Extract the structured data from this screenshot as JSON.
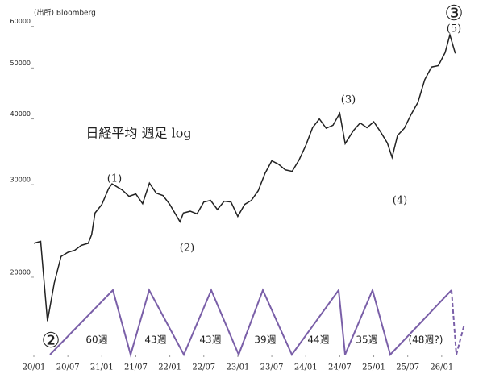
{
  "chart_data": {
    "type": "line",
    "title": "日経平均 週足 log",
    "source": "(出所) Bloomberg",
    "log_scale": true,
    "x": [
      2020.0,
      2020.1,
      2020.2,
      2020.3,
      2020.4,
      2020.5,
      2020.6,
      2020.7,
      2020.8,
      2020.85,
      2020.9,
      2021.0,
      2021.1,
      2021.15,
      2021.3,
      2021.4,
      2021.5,
      2021.6,
      2021.7,
      2021.8,
      2021.9,
      2022.0,
      2022.15,
      2022.2,
      2022.3,
      2022.4,
      2022.5,
      2022.6,
      2022.7,
      2022.8,
      2022.9,
      2023.0,
      2023.1,
      2023.2,
      2023.3,
      2023.4,
      2023.5,
      2023.6,
      2023.7,
      2023.8,
      2023.9,
      2024.0,
      2024.1,
      2024.2,
      2024.3,
      2024.4,
      2024.5,
      2024.58,
      2024.7,
      2024.8,
      2024.9,
      2025.0,
      2025.1,
      2025.2,
      2025.27,
      2025.35,
      2025.45,
      2025.55,
      2025.65,
      2025.75,
      2025.85,
      2025.95,
      2026.05,
      2026.12,
      2026.2
    ],
    "series": [
      {
        "name": "日経平均",
        "color": "#222222",
        "values": [
          23200,
          23400,
          16500,
          19500,
          21900,
          22300,
          22500,
          23000,
          23200,
          24100,
          26500,
          27500,
          29500,
          30100,
          29300,
          28500,
          28800,
          27600,
          30200,
          28900,
          28600,
          27500,
          25500,
          26500,
          26700,
          26400,
          27800,
          28000,
          26900,
          27900,
          27800,
          26100,
          27500,
          28000,
          29200,
          31500,
          33300,
          32800,
          32000,
          31800,
          33400,
          35600,
          38500,
          40000,
          38400,
          38900,
          41000,
          35900,
          38000,
          39300,
          38500,
          39500,
          37800,
          36000,
          33800,
          37200,
          38400,
          40800,
          43000,
          47500,
          50200,
          50500,
          53500,
          57800,
          53300
        ]
      }
    ],
    "xlim": [
      2020.0,
      2026.5
    ],
    "xticks": [
      {
        "value": 2020.0,
        "label": "20/01"
      },
      {
        "value": 2020.5,
        "label": "20/07"
      },
      {
        "value": 2021.0,
        "label": "21/01"
      },
      {
        "value": 2021.5,
        "label": "21/07"
      },
      {
        "value": 2022.0,
        "label": "22/01"
      },
      {
        "value": 2022.5,
        "label": "22/07"
      },
      {
        "value": 2023.0,
        "label": "23/01"
      },
      {
        "value": 2023.5,
        "label": "23/07"
      },
      {
        "value": 2024.0,
        "label": "24/01"
      },
      {
        "value": 2024.5,
        "label": "24/07"
      },
      {
        "value": 2025.0,
        "label": "25/01"
      },
      {
        "value": 2025.5,
        "label": "25/07"
      },
      {
        "value": 2026.0,
        "label": "26/01"
      }
    ],
    "ylim": [
      14250,
      65000
    ],
    "yticks": [
      20000,
      30000,
      40000,
      50000,
      60000
    ],
    "wave_labels": [
      "(1)",
      "(2)",
      "(3)",
      "(4)",
      "(5)",
      "③",
      "②"
    ],
    "cycle_labels": [
      "60週",
      "43週",
      "43週",
      "39週",
      "44週",
      "35週",
      "(48週?)"
    ],
    "cycle_color": "#7a5fa8"
  }
}
